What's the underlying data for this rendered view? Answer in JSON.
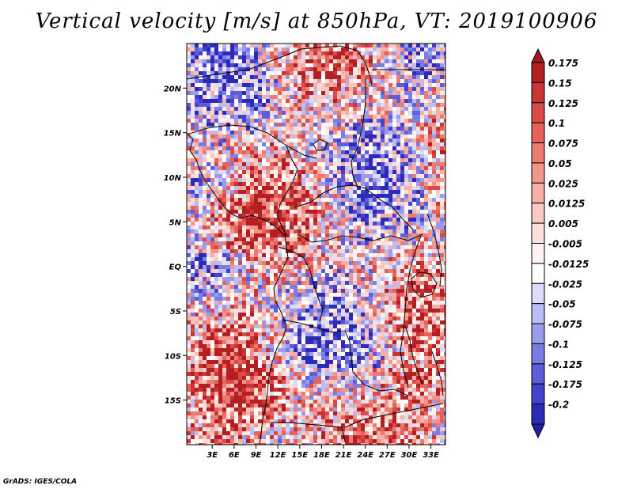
{
  "title": "Vertical velocity [m/s] at 850hPa, VT: 2019100906",
  "credit": "GrADS: IGES/COLA",
  "map": {
    "lon_range": [
      -0.5,
      35
    ],
    "lat_range": [
      -20,
      25
    ],
    "lat_ticks": [
      {
        "value": 20,
        "label": "20N"
      },
      {
        "value": 15,
        "label": "15N"
      },
      {
        "value": 10,
        "label": "10N"
      },
      {
        "value": 5,
        "label": "5N"
      },
      {
        "value": 0,
        "label": "EQ"
      },
      {
        "value": -5,
        "label": "5S"
      },
      {
        "value": -10,
        "label": "10S"
      },
      {
        "value": -15,
        "label": "15S"
      }
    ],
    "lon_ticks": [
      {
        "value": 3,
        "label": "3E"
      },
      {
        "value": 6,
        "label": "6E"
      },
      {
        "value": 9,
        "label": "9E"
      },
      {
        "value": 12,
        "label": "12E"
      },
      {
        "value": 15,
        "label": "15E"
      },
      {
        "value": 18,
        "label": "18E"
      },
      {
        "value": 21,
        "label": "21E"
      },
      {
        "value": 24,
        "label": "24E"
      },
      {
        "value": 27,
        "label": "27E"
      },
      {
        "value": 30,
        "label": "30E"
      },
      {
        "value": 33,
        "label": "33E"
      }
    ]
  },
  "colorbar": {
    "levels": [
      {
        "label": "0.175",
        "color": "#b41f24"
      },
      {
        "label": "0.15",
        "color": "#c93434"
      },
      {
        "label": "0.125",
        "color": "#db4a46"
      },
      {
        "label": "0.1",
        "color": "#e5625b"
      },
      {
        "label": "0.075",
        "color": "#ec7c73"
      },
      {
        "label": "0.05",
        "color": "#f2968c"
      },
      {
        "label": "0.025",
        "color": "#f6b0a8"
      },
      {
        "label": "0.0125",
        "color": "#f9c8c2"
      },
      {
        "label": "0.005",
        "color": "#fce0dc"
      },
      {
        "label": "-0.005",
        "color": "#fdf3f1"
      },
      {
        "label": "-0.0125",
        "color": "#ffffff"
      },
      {
        "label": "-0.025",
        "color": "#dcdcfa"
      },
      {
        "label": "-0.05",
        "color": "#bcbcf5"
      },
      {
        "label": "-0.075",
        "color": "#9b9bee"
      },
      {
        "label": "-0.1",
        "color": "#7c7ce5"
      },
      {
        "label": "-0.125",
        "color": "#5e5edb"
      },
      {
        "label": "-0.175",
        "color": "#4343cc"
      },
      {
        "label": "-0.2",
        "color": "#2b2bb8"
      }
    ],
    "top_color": "#a01a20",
    "bottom_color": "#1f1fa6"
  }
}
